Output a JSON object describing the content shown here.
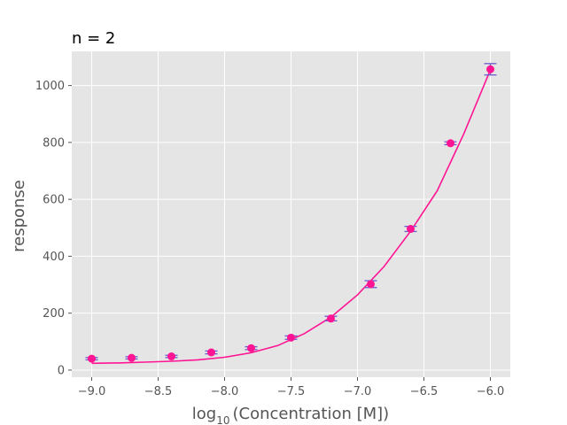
{
  "chart_data": {
    "type": "scatter",
    "title": "n = 2",
    "xlabel": {
      "prefix": "log",
      "subscript": "10",
      "suffix": "(Concentration [M])"
    },
    "ylabel": "response",
    "xlim": [
      -9.15,
      -5.85
    ],
    "ylim": [
      -25,
      1120
    ],
    "xticks": [
      -9.0,
      -8.5,
      -8.0,
      -7.5,
      -7.0,
      -6.5,
      -6.0
    ],
    "xtick_labels": [
      "−9.0",
      "−8.5",
      "−8.0",
      "−7.5",
      "−7.0",
      "−6.5",
      "−6.0"
    ],
    "yticks": [
      0,
      200,
      400,
      600,
      800,
      1000
    ],
    "ytick_labels": [
      "0",
      "200",
      "400",
      "600",
      "800",
      "1000"
    ],
    "grid": true,
    "series": [
      {
        "kind": "points_with_error",
        "x": [
          -9.0,
          -8.7,
          -8.4,
          -8.1,
          -7.8,
          -7.5,
          -7.2,
          -6.9,
          -6.6,
          -6.3,
          -6.0
        ],
        "y": [
          40,
          43,
          48,
          62,
          77,
          114,
          181,
          302,
          496,
          797,
          1057
        ],
        "yerr": [
          4,
          4,
          4,
          5,
          5,
          6,
          8,
          12,
          9,
          5,
          20
        ]
      },
      {
        "kind": "fit_curve",
        "x": [
          -9.0,
          -8.8,
          -8.6,
          -8.4,
          -8.2,
          -8.0,
          -7.8,
          -7.6,
          -7.4,
          -7.2,
          -7.0,
          -6.8,
          -6.6,
          -6.4,
          -6.2,
          -6.0
        ],
        "y": [
          24,
          25,
          28,
          31,
          36,
          45,
          61,
          86,
          128,
          186,
          264,
          364,
          488,
          630,
          830,
          1055
        ]
      }
    ],
    "colors": {
      "background": "#e5e5e5",
      "grid": "#ffffff",
      "marker": "#ff1493",
      "curve": "#ff1493",
      "errorbar": "#6a5acd"
    }
  }
}
